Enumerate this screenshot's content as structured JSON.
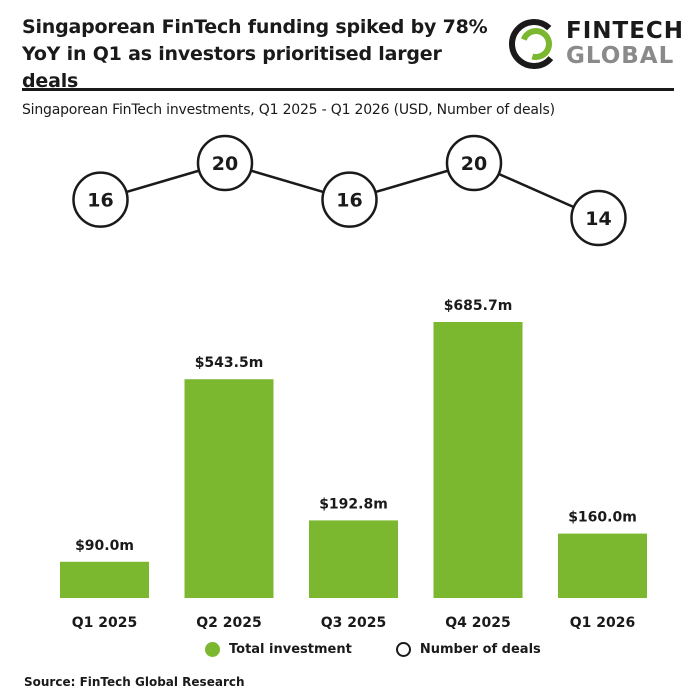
{
  "header": {
    "title_line1": "Singaporean FinTech funding spiked by 78%",
    "title_line2": "YoY in Q1 as investors prioritised larger deals"
  },
  "logo": {
    "word1": "FINTECH",
    "word2": "GLOBAL"
  },
  "colors": {
    "bar": "#7cb82f",
    "ink": "#1a1a1a",
    "logo_grey": "#8a8a8a"
  },
  "legend": {
    "investment_label": "Total investment",
    "deals_label": "Number of deals"
  },
  "source": "Source: FinTech Global Research",
  "chart_data": {
    "type": "bar",
    "title": "Singaporean FinTech investments, Q1 2025 - Q1 2026 (USD, Number of deals)",
    "categories": [
      "Q1 2025",
      "Q2 2025",
      "Q3 2025",
      "Q4 2025",
      "Q1 2026"
    ],
    "series": [
      {
        "name": "Total investment",
        "type": "bar",
        "values": [
          90.0,
          543.5,
          192.8,
          685.7,
          160.0
        ],
        "labels": [
          "$90.0m",
          "$543.5m",
          "$192.8m",
          "$685.7m",
          "$160.0m"
        ]
      },
      {
        "name": "Number of deals",
        "type": "line",
        "values": [
          16,
          20,
          16,
          20,
          14
        ]
      }
    ],
    "ylim": [
      0,
      685.7
    ],
    "grid": false,
    "legend_position": "bottom"
  }
}
